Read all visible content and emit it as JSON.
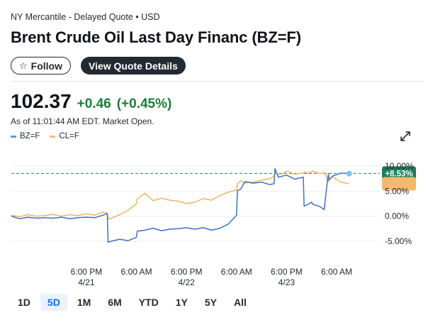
{
  "header": {
    "exchange_line": "NY Mercantile - Delayed Quote • USD",
    "title": "Brent Crude Oil Last Day Financ (BZ=F)",
    "follow_label": "Follow",
    "quote_details_label": "View Quote Details"
  },
  "quote": {
    "price": "102.37",
    "change": "+0.46",
    "change_pct": "(+0.45%)",
    "as_of": "As of 11:01:44 AM EDT. Market Open."
  },
  "legend": {
    "items": [
      {
        "label": "BZ=F",
        "color": "#5b9bd5"
      },
      {
        "label": "CL=F",
        "color": "#f5b96e"
      }
    ]
  },
  "colors": {
    "positive": "#1a7f37",
    "badge_green": "#1a7f5a",
    "badge_orange": "#f5b96e",
    "bz_line": "#3f72c2",
    "cl_line": "#f0b467"
  },
  "chart_data": {
    "type": "line",
    "y_unit": "% change",
    "ylim": [
      -6,
      11
    ],
    "y_ticks": [
      10,
      5,
      0,
      -5
    ],
    "y_tick_labels": [
      "10.00%",
      "5.00%",
      "0.00%",
      "-5.00%"
    ],
    "x_tick_labels": [
      "6:00 PM",
      "6:00 AM",
      "6:00 PM",
      "6:00 AM",
      "6:00 PM",
      "6:00 AM"
    ],
    "x_tick_positions": [
      18,
      30,
      42,
      54,
      66,
      78
    ],
    "date_labels": [
      "4/21",
      "4/22",
      "4/23"
    ],
    "date_positions": [
      18,
      42,
      66
    ],
    "xlim": [
      0,
      87
    ],
    "reference_line": 8.53,
    "badges": [
      {
        "text": "+8.53%",
        "value": 8.53,
        "kind": "green"
      },
      {
        "text": "",
        "value": 6.4,
        "kind": "orange"
      }
    ],
    "series": [
      {
        "name": "BZ=F",
        "color": "#3f72c2",
        "x": [
          0,
          2,
          4,
          6,
          8,
          10,
          12,
          14,
          16,
          18,
          20,
          22,
          23,
          23.2,
          24,
          26,
          28,
          30,
          30.2,
          32,
          34,
          36,
          38,
          40,
          42,
          44,
          46,
          48,
          50,
          52,
          54,
          54.2,
          55,
          56,
          58,
          60,
          62,
          63,
          63.2,
          64,
          65,
          66,
          68,
          70,
          70.2,
          71,
          72,
          72.2,
          74,
          75,
          76,
          76.2,
          77,
          79,
          81
        ],
        "y": [
          0.0,
          -0.5,
          -0.2,
          -0.4,
          -0.3,
          -0.4,
          -0.2,
          -0.5,
          -0.3,
          -0.2,
          -0.3,
          0.2,
          0.5,
          -5.2,
          -5.0,
          -4.6,
          -4.9,
          -4.2,
          -3.0,
          -2.8,
          -2.4,
          -2.9,
          -2.6,
          -2.5,
          -2.3,
          -2.6,
          -2.3,
          -2.8,
          -2.4,
          -1.6,
          0.2,
          5.1,
          5.4,
          6.9,
          6.6,
          6.8,
          6.3,
          6.5,
          9.5,
          7.8,
          8.0,
          8.2,
          7.4,
          7.8,
          2.0,
          2.3,
          2.8,
          2.4,
          1.9,
          1.3,
          8.5,
          7.2,
          8.0,
          8.6,
          8.5
        ]
      },
      {
        "name": "CL=F",
        "color": "#f0b467",
        "x": [
          0,
          2,
          4,
          6,
          8,
          10,
          12,
          14,
          16,
          18,
          20,
          22,
          23,
          23.2,
          24,
          26,
          28,
          30,
          30.2,
          31,
          32,
          34,
          36,
          38,
          40,
          42,
          44,
          46,
          48,
          50,
          52,
          54,
          54.2,
          55,
          56,
          58,
          60,
          62,
          63,
          63.2,
          64,
          65,
          66,
          68,
          70,
          70.2,
          71,
          72,
          72.2,
          74,
          75,
          76,
          76.2,
          77,
          79,
          81
        ],
        "y": [
          0.2,
          -0.1,
          0.3,
          0.0,
          0.1,
          0.4,
          0.0,
          0.3,
          0.1,
          0.5,
          0.2,
          0.8,
          0.6,
          -0.6,
          -0.4,
          0.3,
          1.2,
          2.5,
          3.5,
          3.9,
          4.6,
          3.1,
          3.6,
          3.2,
          3.0,
          2.5,
          2.8,
          3.5,
          3.2,
          4.1,
          4.8,
          5.2,
          6.5,
          7.1,
          6.6,
          6.8,
          7.2,
          7.5,
          8.0,
          8.7,
          8.3,
          8.5,
          9.0,
          8.4,
          8.6,
          8.8,
          8.6,
          8.9,
          9.0,
          8.5,
          8.7,
          6.9,
          7.3,
          7.9,
          6.8,
          6.5
        ]
      }
    ]
  },
  "ranges": {
    "items": [
      "1D",
      "5D",
      "1M",
      "6M",
      "YTD",
      "1Y",
      "5Y",
      "All"
    ],
    "active": "5D"
  }
}
